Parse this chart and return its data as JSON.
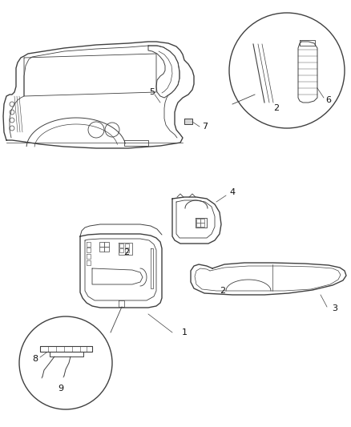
{
  "bg_color": "#ffffff",
  "lc": "#404040",
  "figsize": [
    4.39,
    5.33
  ],
  "dpi": 100
}
